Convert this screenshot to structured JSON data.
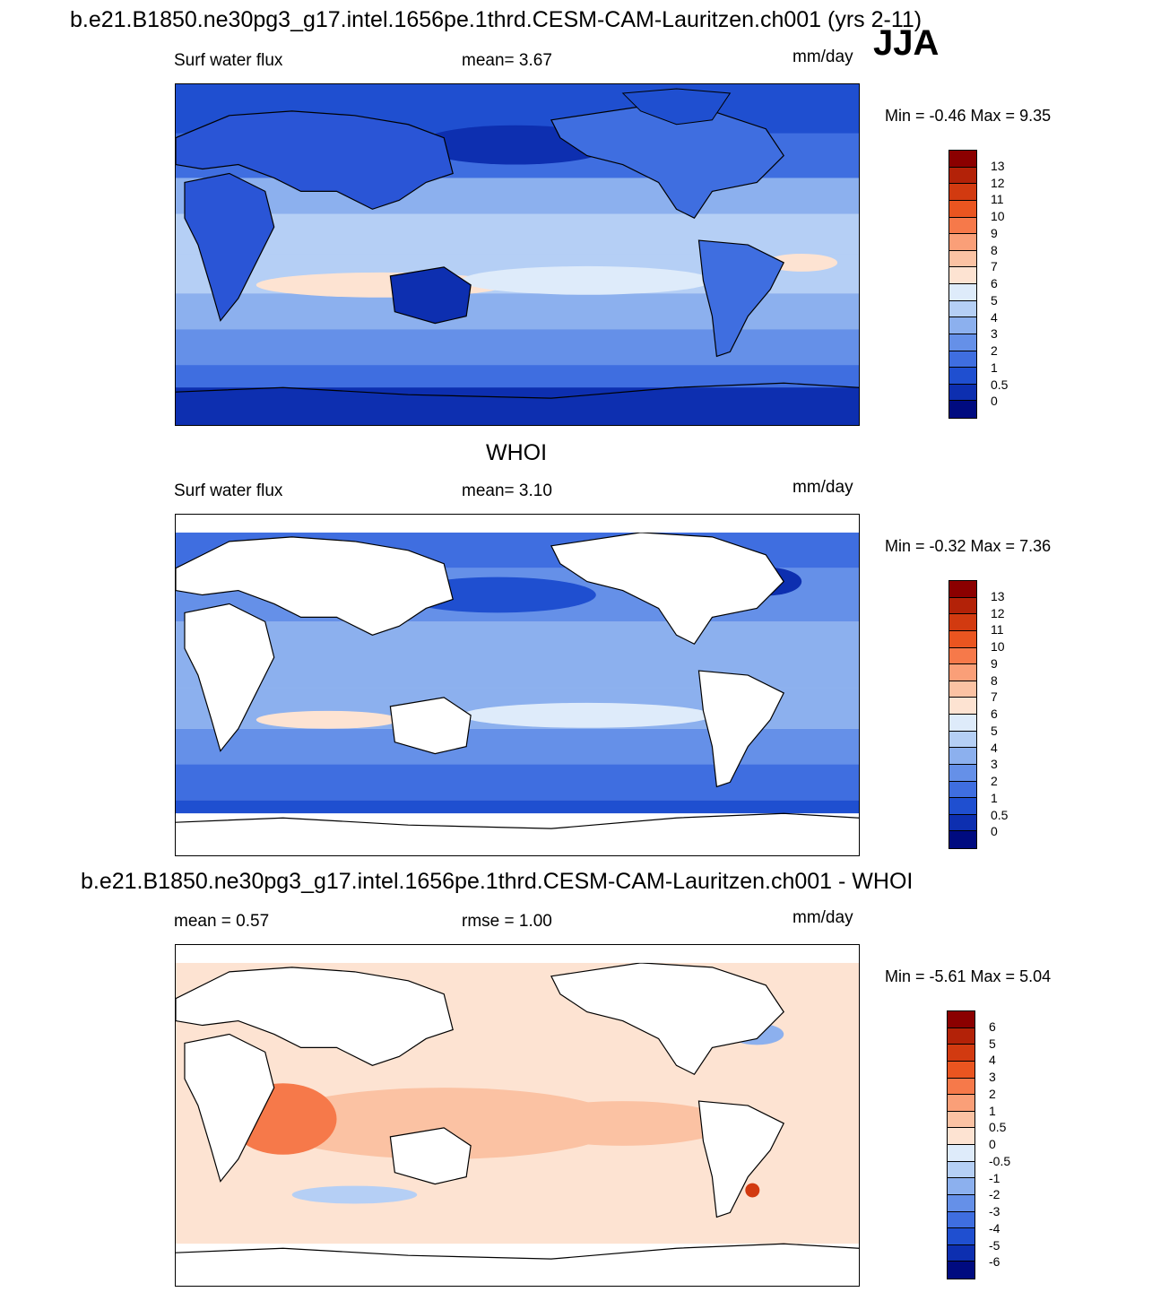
{
  "header": {
    "title": "b.e21.B1850.ne30pg3_g17.intel.1656pe.1thrd.CESM-CAM-Lauritzen.ch001 (yrs 2-11)",
    "season": "JJA"
  },
  "panels": [
    {
      "title": "",
      "left_label": "Surf water flux",
      "center_label": "mean=   3.67",
      "units": "mm/day",
      "minmax": "Min =  -0.46 Max =   9.35",
      "land_masked": false
    },
    {
      "title": "WHOI",
      "left_label": "Surf water flux",
      "center_label": "mean=   3.10",
      "units": "mm/day",
      "minmax": "Min =  -0.32 Max =   7.36",
      "land_masked": true
    },
    {
      "title": "b.e21.B1850.ne30pg3_g17.intel.1656pe.1thrd.CESM-CAM-Lauritzen.ch001 - WHOI",
      "left_label": "mean =   0.57",
      "center_label": "rmse =   1.00",
      "units": "mm/day",
      "minmax": "Min =  -5.61 Max =   5.04",
      "land_masked": true
    }
  ],
  "colorbars": {
    "field": {
      "levels": [
        "13",
        "12",
        "11",
        "10",
        "9",
        "8",
        "7",
        "6",
        "5",
        "4",
        "3",
        "2",
        "1",
        "0.5",
        "0"
      ],
      "colors": [
        "#8b0000",
        "#b32208",
        "#d23a10",
        "#ea5520",
        "#f6794a",
        "#fa9f78",
        "#fbc2a3",
        "#fde3d2",
        "#deebfa",
        "#b5cff5",
        "#8cb0ee",
        "#6590e8",
        "#3f6ee0",
        "#1f4fd0",
        "#0d2fb0",
        "#000b80"
      ]
    },
    "diff": {
      "levels": [
        "6",
        "5",
        "4",
        "3",
        "2",
        "1",
        "0.5",
        "0",
        "-0.5",
        "-1",
        "-2",
        "-3",
        "-4",
        "-5",
        "-6"
      ],
      "colors": [
        "#8b0000",
        "#b32208",
        "#d23a10",
        "#ea5520",
        "#f6794a",
        "#fa9f78",
        "#fbc2a3",
        "#fde3d2",
        "#deebfa",
        "#b5cff5",
        "#8cb0ee",
        "#6590e8",
        "#3f6ee0",
        "#1f4fd0",
        "#0d2fb0",
        "#000b80"
      ]
    }
  }
}
